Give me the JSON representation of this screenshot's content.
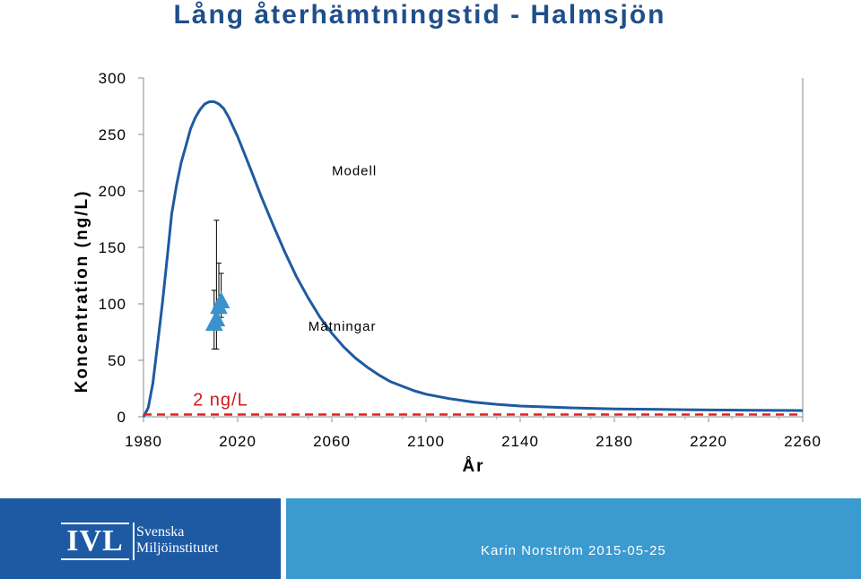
{
  "chart_data": {
    "type": "line",
    "title": "Lång återhämtningstid - Halmsjön",
    "xlabel": "År",
    "ylabel": "Koncentration (ng/L)",
    "xlim": [
      1980,
      2260
    ],
    "ylim": [
      0,
      300
    ],
    "x_ticks": [
      1980,
      2020,
      2060,
      2100,
      2140,
      2180,
      2220,
      2260
    ],
    "y_ticks": [
      0,
      50,
      100,
      150,
      200,
      250,
      300
    ],
    "grid": false,
    "series": [
      {
        "name": "Modell",
        "type": "line",
        "color": "#1f5aa0",
        "points": [
          [
            1980,
            0
          ],
          [
            1982,
            8
          ],
          [
            1984,
            30
          ],
          [
            1986,
            65
          ],
          [
            1988,
            100
          ],
          [
            1990,
            140
          ],
          [
            1992,
            180
          ],
          [
            1994,
            205
          ],
          [
            1996,
            225
          ],
          [
            1998,
            240
          ],
          [
            2000,
            255
          ],
          [
            2002,
            265
          ],
          [
            2004,
            272
          ],
          [
            2006,
            277
          ],
          [
            2008,
            279
          ],
          [
            2010,
            279
          ],
          [
            2012,
            277
          ],
          [
            2014,
            273
          ],
          [
            2016,
            266
          ],
          [
            2020,
            248
          ],
          [
            2025,
            222
          ],
          [
            2030,
            195
          ],
          [
            2035,
            170
          ],
          [
            2040,
            146
          ],
          [
            2045,
            124
          ],
          [
            2050,
            105
          ],
          [
            2055,
            88
          ],
          [
            2060,
            74
          ],
          [
            2065,
            62
          ],
          [
            2070,
            52
          ],
          [
            2075,
            44
          ],
          [
            2080,
            37
          ],
          [
            2085,
            31
          ],
          [
            2090,
            27
          ],
          [
            2095,
            23
          ],
          [
            2100,
            20
          ],
          [
            2110,
            16
          ],
          [
            2120,
            13
          ],
          [
            2130,
            11
          ],
          [
            2140,
            9.5
          ],
          [
            2160,
            8
          ],
          [
            2180,
            7
          ],
          [
            2200,
            6.5
          ],
          [
            2220,
            6
          ],
          [
            2240,
            5.8
          ],
          [
            2260,
            5.5
          ]
        ]
      },
      {
        "name": "Mätningar",
        "type": "scatter",
        "marker": "triangle",
        "color": "#3a93cc",
        "points": [
          {
            "x": 2010,
            "y": 82,
            "low": 60,
            "high": 112
          },
          {
            "x": 2011,
            "y": 86,
            "low": 60,
            "high": 174
          },
          {
            "x": 2012,
            "y": 97,
            "low": 78,
            "high": 136
          },
          {
            "x": 2013,
            "y": 102,
            "low": 88,
            "high": 127
          }
        ]
      },
      {
        "name": "2 ng/L",
        "type": "hline",
        "style": "dashed",
        "color": "#e02020",
        "y": 2
      }
    ],
    "annotations": [
      {
        "text": "Modell",
        "x": 2060,
        "y": 214
      },
      {
        "text": "Mätningar",
        "x": 2050,
        "y": 76
      },
      {
        "text": "2 ng/L",
        "x": 2001,
        "y": 10
      }
    ]
  },
  "footer": {
    "logo_main": "IVL",
    "logo_line1": "Svenska",
    "logo_line2": "Miljöinstitutet",
    "credit": "Karin Norström 2015-05-25"
  },
  "colors": {
    "footer_dark": "#1d5aa3",
    "footer_light": "#3b9bd1"
  }
}
